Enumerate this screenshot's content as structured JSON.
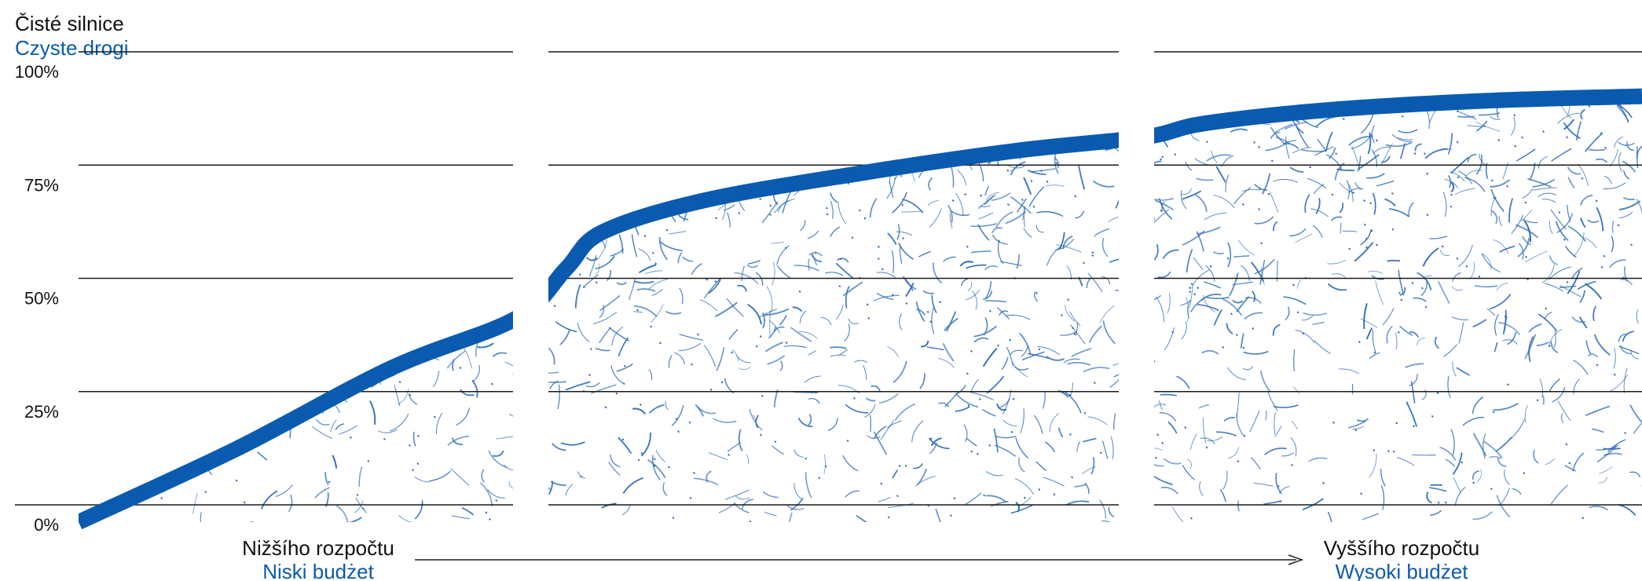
{
  "title": {
    "cs": "Čisté silnice",
    "pl": "Czyste drogi"
  },
  "colors": {
    "accent": "#0a5bb0",
    "texture": "#2f6db5",
    "grid": "#1a1a1a",
    "text": "#111111"
  },
  "chart_data": {
    "type": "area",
    "x_axis": {
      "direction": "increasing budget (arrow)",
      "start_label": {
        "cs": "Nižšího rozpočtu",
        "pl": "Niski budżet"
      },
      "end_label": {
        "cs": "Vyššího rozpočtu",
        "pl": "Wysoki budżet"
      }
    },
    "y_axis": {
      "ylim": [
        0,
        100
      ],
      "ticks": [
        "0%",
        "25%",
        "50%",
        "75%",
        "100%"
      ]
    },
    "grid": true,
    "curve_points": [
      {
        "x": 0.0,
        "y": 0
      },
      {
        "x": 0.1,
        "y": 16
      },
      {
        "x": 0.2,
        "y": 34
      },
      {
        "x": 0.28,
        "y": 45
      },
      {
        "x": 0.312,
        "y": 56
      },
      {
        "x": 0.335,
        "y": 64
      },
      {
        "x": 0.4,
        "y": 71
      },
      {
        "x": 0.5,
        "y": 77
      },
      {
        "x": 0.6,
        "y": 82
      },
      {
        "x": 0.682,
        "y": 85
      },
      {
        "x": 0.72,
        "y": 88
      },
      {
        "x": 0.8,
        "y": 91
      },
      {
        "x": 0.9,
        "y": 93
      },
      {
        "x": 1.0,
        "y": 94
      }
    ]
  }
}
